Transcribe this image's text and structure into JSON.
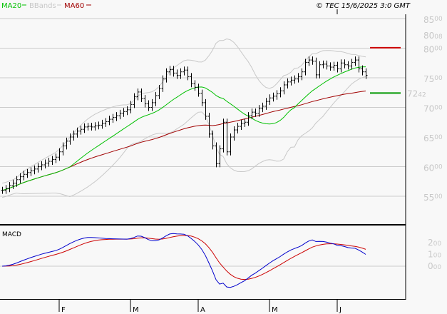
{
  "legend": [
    {
      "label": "MA20",
      "color": "#00c000"
    },
    {
      "label": "BBands",
      "color": "#c8c8c8"
    },
    {
      "label": "MA60",
      "color": "#a00000"
    }
  ],
  "copyright": "© TEC 15/6/2025 3:0 GMT",
  "chart_data": [
    {
      "type": "line",
      "subtype": "ohlc-bars",
      "ylim": [
        53,
        87
      ],
      "y_ticks": [
        "85.00",
        "80.00",
        "75.00",
        "70.00",
        "65.00",
        "60.00",
        "55.00"
      ],
      "y_tick_values": [
        85,
        80,
        75,
        70,
        65,
        60,
        55
      ],
      "x_ticks": [
        "F",
        "M",
        "A",
        "M",
        "J"
      ],
      "x_tick_bar_index": [
        16,
        36,
        55,
        75,
        94
      ],
      "grid": true,
      "close": [
        56.0,
        56.3,
        56.8,
        57.2,
        57.8,
        58.3,
        58.7,
        59.0,
        59.3,
        59.6,
        60.0,
        60.3,
        60.6,
        60.9,
        61.2,
        61.6,
        62.5,
        63.5,
        64.3,
        65.0,
        65.5,
        66.0,
        66.3,
        66.7,
        66.8,
        66.7,
        66.9,
        67.0,
        67.3,
        67.6,
        68.0,
        68.3,
        68.6,
        69.0,
        69.3,
        69.6,
        70.5,
        71.8,
        72.6,
        71.5,
        70.6,
        70.0,
        70.8,
        72.0,
        73.2,
        74.8,
        76.0,
        76.4,
        75.8,
        75.4,
        76.0,
        76.3,
        75.2,
        74.0,
        73.4,
        72.4,
        70.8,
        68.5,
        65.5,
        63.5,
        60.5,
        63.0,
        67.5,
        62.5,
        65.0,
        66.2,
        66.8,
        67.3,
        67.5,
        68.6,
        69.2,
        69.0,
        69.8,
        70.2,
        71.0,
        71.6,
        71.9,
        72.3,
        72.8,
        73.8,
        74.3,
        74.6,
        74.8,
        75.2,
        76.0,
        77.6,
        78.0,
        77.8,
        75.5,
        77.2,
        77.3,
        77.0,
        76.8,
        77.1,
        76.5,
        77.5,
        77.2,
        77.0,
        77.6,
        78.0,
        76.5,
        76.0,
        75.4
      ],
      "series": [
        {
          "name": "MA20",
          "color": "#00c000",
          "period": 20
        },
        {
          "name": "BBands",
          "color": "#c8c8c8",
          "period": 20,
          "stddev": 2
        },
        {
          "name": "MA60",
          "color": "#a00000",
          "period": 60
        }
      ],
      "markers": [
        {
          "label": "80.08",
          "value": 80.08,
          "color": "#cc0000"
        },
        {
          "label": "72.42",
          "value": 72.42,
          "color": "#009900"
        }
      ]
    },
    {
      "type": "line",
      "title": "MACD",
      "ylim": [
        -3.5,
        3.0
      ],
      "y_ticks": [
        "2.00",
        "1.00",
        "0.00"
      ],
      "y_tick_values": [
        2,
        1,
        0
      ],
      "series": [
        {
          "name": "MACD",
          "color": "#0000cc"
        },
        {
          "name": "Signal",
          "color": "#cc0000"
        }
      ]
    }
  ]
}
